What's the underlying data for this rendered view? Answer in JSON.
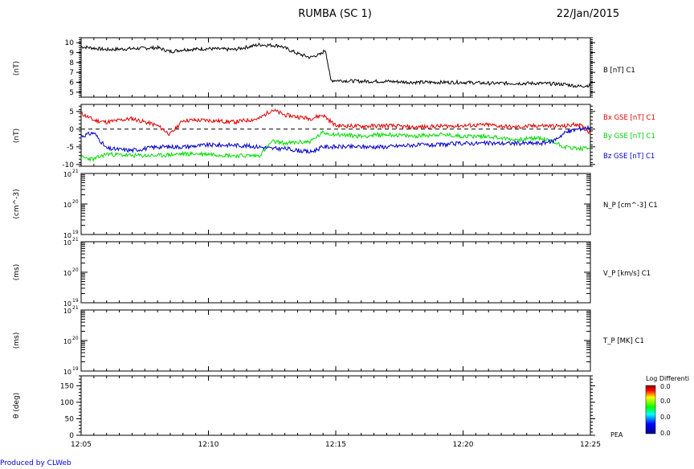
{
  "header": {
    "title": "RUMBA (SC 1)",
    "date": "22/Jan/2015"
  },
  "footer": {
    "credit": "Produced by CLWeb"
  },
  "time_axis": {
    "ticks": [
      "12:05",
      "12:10",
      "12:15",
      "12:20",
      "12:25"
    ],
    "range_minutes": [
      0,
      20
    ]
  },
  "colorbar": {
    "title": "Log Differenti",
    "labels": [
      "0.0",
      "0.0",
      "0.0",
      "0.0"
    ],
    "label_bottom": "PEA"
  },
  "chart_data": [
    {
      "type": "line",
      "panel": "B magnitude",
      "ylabel": "(nT)",
      "ylim": [
        4.5,
        10.5
      ],
      "yticks": [
        "10",
        "9",
        "8",
        "7",
        "6",
        "5"
      ],
      "series": [
        {
          "name": "B [nT] C1",
          "color": "#000000",
          "x": [
            0,
            1,
            2,
            3,
            3.5,
            4,
            5,
            6,
            7,
            7.8,
            8.5,
            9,
            9.2,
            9.4,
            9.6,
            9.8,
            10,
            11,
            12,
            13,
            14,
            15,
            16,
            17,
            18,
            19,
            19.5,
            20
          ],
          "y": [
            9.6,
            9.3,
            9.4,
            9.5,
            9.1,
            9.3,
            9.4,
            9.3,
            9.8,
            9.7,
            8.9,
            8.5,
            8.7,
            8.8,
            9.3,
            6.2,
            6.2,
            6.1,
            6.1,
            6.0,
            6.0,
            6.0,
            5.9,
            5.9,
            5.9,
            5.8,
            5.6,
            5.7
          ]
        }
      ]
    },
    {
      "type": "line",
      "panel": "B GSE components",
      "ylabel": "(nT)",
      "ylim": [
        -10.5,
        7
      ],
      "yticks": [
        "5",
        "0",
        "-5",
        "-10"
      ],
      "zero_line": "dashed",
      "series": [
        {
          "name": "Bx GSE [nT] C1",
          "color": "#dd0000",
          "x": [
            0,
            0.5,
            1,
            2,
            3,
            3.5,
            4,
            5,
            6,
            7,
            7.5,
            8,
            9,
            9.5,
            10,
            11,
            12,
            13,
            14,
            15,
            16,
            17,
            18,
            19,
            19.5,
            20
          ],
          "y": [
            4.5,
            2.5,
            2.0,
            3.0,
            1.0,
            -1.5,
            2.5,
            2.5,
            2.0,
            3.0,
            5.5,
            4.0,
            3.0,
            4.0,
            1.0,
            0.8,
            1.0,
            0.5,
            0.8,
            1.0,
            1.2,
            0.5,
            1.0,
            0.8,
            1.5,
            -1.0
          ]
        },
        {
          "name": "By GSE [nT] C1",
          "color": "#00dd00",
          "x": [
            0,
            0.5,
            1,
            2,
            3,
            4,
            5,
            6,
            7,
            7.5,
            8,
            9,
            9.5,
            10,
            11,
            12,
            13,
            14,
            15,
            16,
            17,
            18,
            18.5,
            19,
            19.5,
            20
          ],
          "y": [
            -8.0,
            -8.5,
            -7.0,
            -7.5,
            -7.5,
            -7.0,
            -7.0,
            -7.5,
            -7.5,
            -3.5,
            -4.0,
            -3.5,
            -1.0,
            -1.5,
            -2.0,
            -1.5,
            -2.0,
            -1.5,
            -2.0,
            -2.0,
            -3.0,
            -2.5,
            -3.5,
            -5.0,
            -5.5,
            -5.5
          ]
        },
        {
          "name": "Bz GSE [nT] C1",
          "color": "#0000cc",
          "x": [
            0,
            0.5,
            1,
            2,
            3,
            4,
            5,
            6,
            7,
            7.5,
            8,
            9,
            9.5,
            10,
            11,
            12,
            13,
            14,
            15,
            16,
            17,
            18,
            18.5,
            19,
            19.5,
            20
          ],
          "y": [
            -2.0,
            -1.0,
            -5.5,
            -6.0,
            -5.0,
            -5.0,
            -4.5,
            -4.5,
            -5.0,
            -5.5,
            -5.5,
            -6.5,
            -5.0,
            -5.0,
            -5.0,
            -5.0,
            -4.5,
            -4.5,
            -4.0,
            -4.0,
            -4.0,
            -4.0,
            -3.5,
            -1.0,
            0.0,
            0.5
          ]
        }
      ]
    },
    {
      "type": "line",
      "panel": "Proton density",
      "ylabel": "(cm^-3)",
      "ylim": [
        "1e19",
        "1e21"
      ],
      "yscale": "log",
      "series": [
        {
          "name": "N_P [cm^-3] C1",
          "x": [],
          "y": []
        }
      ]
    },
    {
      "type": "line",
      "panel": "Proton velocity",
      "ylabel": "(ms)",
      "ylim": [
        "1e19",
        "1e21"
      ],
      "yscale": "log",
      "series": [
        {
          "name": "V_P [km/s] C1",
          "x": [],
          "y": []
        }
      ]
    },
    {
      "type": "line",
      "panel": "Proton temperature",
      "ylabel": "(ms)",
      "ylim": [
        "1e19",
        "1e21"
      ],
      "yscale": "log",
      "series": [
        {
          "name": "T_P [MK] C1",
          "x": [],
          "y": []
        }
      ]
    },
    {
      "type": "heatmap",
      "panel": "PEA pitch angle",
      "ylabel": "θ (deg)",
      "ylim": [
        0,
        180
      ],
      "yticks": [
        "150",
        "100",
        "50",
        "0"
      ],
      "series": []
    }
  ],
  "panel_texts": {
    "p1_right": "B [nT] C1",
    "p2_right_1": "Bx GSE [nT] C1",
    "p2_right_2": "By GSE [nT] C1",
    "p2_right_3": "Bz GSE [nT] C1",
    "p3_right": "N_P [cm^-3] C1",
    "p4_right": "V_P [km/s] C1",
    "p5_right": "T_P [MK] C1",
    "log_top": "10",
    "log_mid": "10",
    "log_bot": "10",
    "exp_top": "21",
    "exp_mid": "20",
    "exp_bot": "19"
  }
}
